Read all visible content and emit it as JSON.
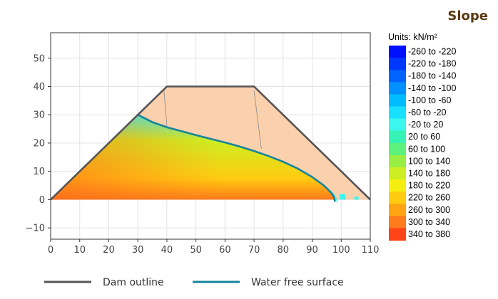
{
  "title": "Slope",
  "chart_data": {
    "type": "heatmap",
    "title": "Slope",
    "xlim": [
      0,
      110
    ],
    "ylim": [
      -14,
      59
    ],
    "x_ticks": [
      0,
      10,
      20,
      30,
      40,
      50,
      60,
      70,
      80,
      90,
      100,
      110
    ],
    "y_ticks": [
      -10,
      0,
      10,
      20,
      30,
      40,
      50
    ],
    "grid": true,
    "colorbar": {
      "units": "Units: kN/m²",
      "classes": [
        {
          "label": "-260 to -220",
          "color": "#0010ff"
        },
        {
          "label": "-220 to -180",
          "color": "#0038ff"
        },
        {
          "label": "-180 to -140",
          "color": "#0062ff"
        },
        {
          "label": "-140 to -100",
          "color": "#0090ff"
        },
        {
          "label": "-100 to -60",
          "color": "#00bcff"
        },
        {
          "label": "-60 to -20",
          "color": "#1ae0ff"
        },
        {
          "label": "-20 to 20",
          "color": "#3cf5ec"
        },
        {
          "label": "20 to 60",
          "color": "#36f2b4"
        },
        {
          "label": "60 to 100",
          "color": "#5cf07c"
        },
        {
          "label": "100 to 140",
          "color": "#99ee44"
        },
        {
          "label": "140 to 180",
          "color": "#ccee22"
        },
        {
          "label": "180 to 220",
          "color": "#f5ee10"
        },
        {
          "label": "220 to 260",
          "color": "#ffcc10"
        },
        {
          "label": "260 to 300",
          "color": "#ffa414"
        },
        {
          "label": "300 to 340",
          "color": "#ff7a1a"
        },
        {
          "label": "340 to 380",
          "color": "#ff4418"
        }
      ]
    },
    "dam_outline": {
      "name": "Dam outline",
      "color": "#555555",
      "points": [
        [
          0,
          0
        ],
        [
          40,
          40
        ],
        [
          70,
          40
        ],
        [
          110,
          0
        ]
      ]
    },
    "core_lines": [
      [
        [
          39,
          38.5
        ],
        [
          40,
          26
        ]
      ],
      [
        [
          70,
          38.5
        ],
        [
          72.5,
          18
        ]
      ]
    ],
    "water_free_surface": {
      "name": "Water free surface",
      "color": "#16849c",
      "points": [
        [
          30,
          30
        ],
        [
          35,
          27.4
        ],
        [
          40,
          25.6
        ],
        [
          45,
          24.2
        ],
        [
          50,
          22.8
        ],
        [
          55,
          21.5
        ],
        [
          60,
          20.2
        ],
        [
          65,
          18.8
        ],
        [
          70,
          17.2
        ],
        [
          75,
          15.4
        ],
        [
          80,
          13.4
        ],
        [
          85,
          11.0
        ],
        [
          90,
          8.0
        ],
        [
          94,
          5.0
        ],
        [
          96.5,
          2.5
        ],
        [
          97.5,
          1.0
        ],
        [
          97.8,
          -0.5
        ]
      ]
    },
    "fill_colors": {
      "dry_zone": "#fbd0ac",
      "wet_top": "#3cf5ec",
      "wet_mid": "#ccee22",
      "wet_low": "#ffcc10",
      "wet_base": "#ff7a1a"
    }
  },
  "legend": {
    "items": [
      {
        "label": "Dam outline",
        "color": "#555555"
      },
      {
        "label": "Water free surface",
        "color": "#16849c"
      }
    ]
  }
}
